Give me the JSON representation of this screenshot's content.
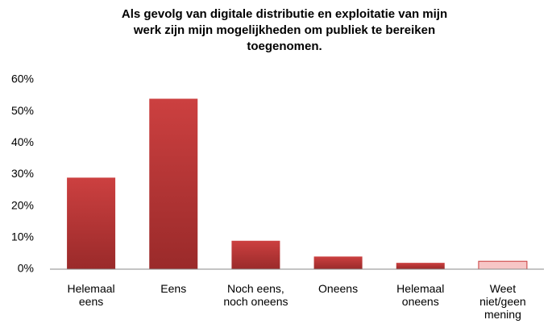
{
  "chart_data": {
    "type": "bar",
    "title": [
      "Als gevolg van digitale distributie en exploitatie van mijn",
      "werk zijn mijn mogelijkheden om publiek te bereiken",
      "toegenomen."
    ],
    "categories": [
      "Helemaal eens",
      "Eens",
      "Noch eens, noch oneens",
      "Oneens",
      "Helemaal oneens",
      "Weet niet/geen mening"
    ],
    "values": [
      29,
      54,
      9,
      4,
      2,
      2.5
    ],
    "colors": [
      "#b83232",
      "#b83232",
      "#b83232",
      "#b83232",
      "#b83232",
      "#f7c6c6"
    ],
    "ylim": [
      0,
      60
    ],
    "yticks": [
      {
        "value": 0,
        "label": "0%"
      },
      {
        "value": 10,
        "label": "10%"
      },
      {
        "value": 20,
        "label": "20%"
      },
      {
        "value": 30,
        "label": "30%"
      },
      {
        "value": 40,
        "label": "40%"
      },
      {
        "value": 50,
        "label": "50%"
      },
      {
        "value": 60,
        "label": "60%"
      }
    ],
    "grid": false
  }
}
